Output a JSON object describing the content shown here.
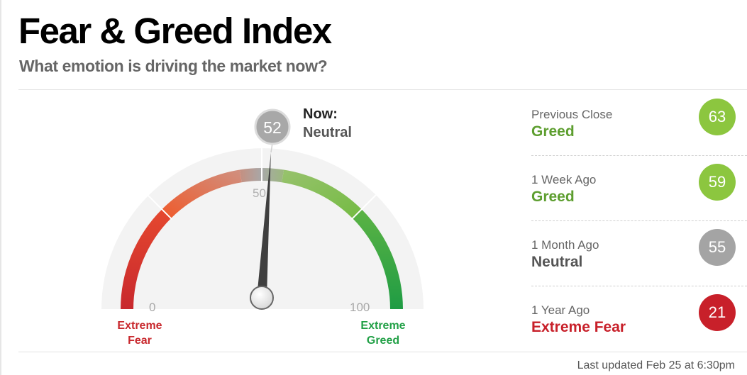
{
  "header": {
    "title": "Fear & Greed Index",
    "subtitle": "What emotion is driving the market now?"
  },
  "gauge": {
    "current_value": 52,
    "current_value_text": "52",
    "now_label": "Now:",
    "now_rating": "Neutral",
    "scale_min": 0,
    "scale_max": 100,
    "tick_min_label": "0",
    "tick_mid_label": "50",
    "tick_max_label": "100",
    "left_label_line1": "Extreme",
    "left_label_line2": "Fear",
    "right_label_line1": "Extreme",
    "right_label_line2": "Greed",
    "colors": {
      "extreme_fear": "#c8282d",
      "fear": "#f0612b",
      "neutral": "#a9a9a9",
      "greed": "#8cc449",
      "extreme_greed": "#21a046",
      "needle": "#3f3f3f"
    }
  },
  "history": [
    {
      "period": "Previous Close",
      "rating": "Greed",
      "score": "63",
      "color": "#8cc63f",
      "rating_color": "#5d9e2f"
    },
    {
      "period": "1 Week Ago",
      "rating": "Greed",
      "score": "59",
      "color": "#8cc63f",
      "rating_color": "#5d9e2f"
    },
    {
      "period": "1 Month Ago",
      "rating": "Neutral",
      "score": "55",
      "color": "#a4a4a4",
      "rating_color": "#555555"
    },
    {
      "period": "1 Year Ago",
      "rating": "Extreme Fear",
      "score": "21",
      "color": "#c8202a",
      "rating_color": "#c8202a"
    }
  ],
  "footer": {
    "last_updated": "Last updated Feb 25 at 6:30pm"
  }
}
